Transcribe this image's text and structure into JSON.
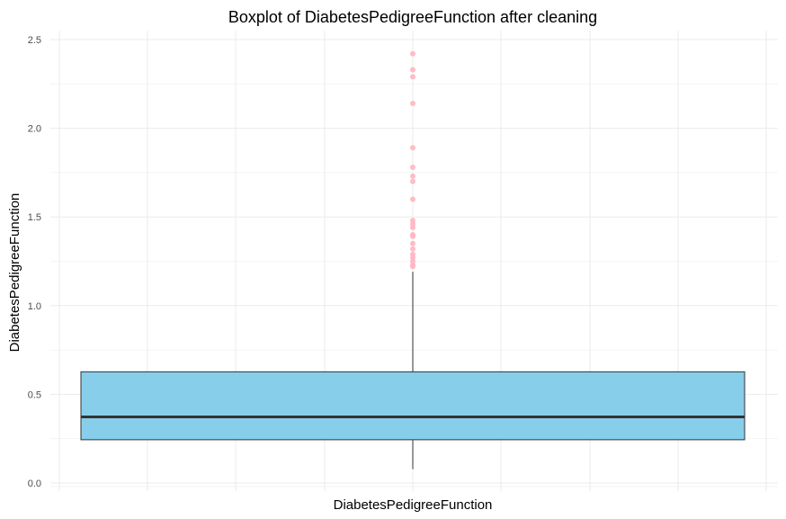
{
  "chart_data": {
    "type": "boxplot",
    "title": "Boxplot of DiabetesPedigreeFunction after cleaning",
    "xlabel": "DiabetesPedigreeFunction",
    "ylabel": "DiabetesPedigreeFunction",
    "ylim": [
      0.0,
      2.5
    ],
    "y_ticks": [
      "0.0",
      "0.5",
      "1.0",
      "1.5",
      "2.0",
      "2.5"
    ],
    "grid": true,
    "box": {
      "min": 0.078,
      "q1": 0.244,
      "median": 0.373,
      "q3": 0.627,
      "whisker_high": 1.191,
      "fill": "#87CEEB",
      "median_color": "#333333"
    },
    "outliers": [
      2.42,
      2.33,
      2.29,
      2.14,
      1.89,
      1.78,
      1.73,
      1.7,
      1.6,
      1.48,
      1.46,
      1.44,
      1.4,
      1.39,
      1.35,
      1.32,
      1.29,
      1.27,
      1.25,
      1.23,
      1.22
    ],
    "outlier_color": "#FFB6C1"
  }
}
